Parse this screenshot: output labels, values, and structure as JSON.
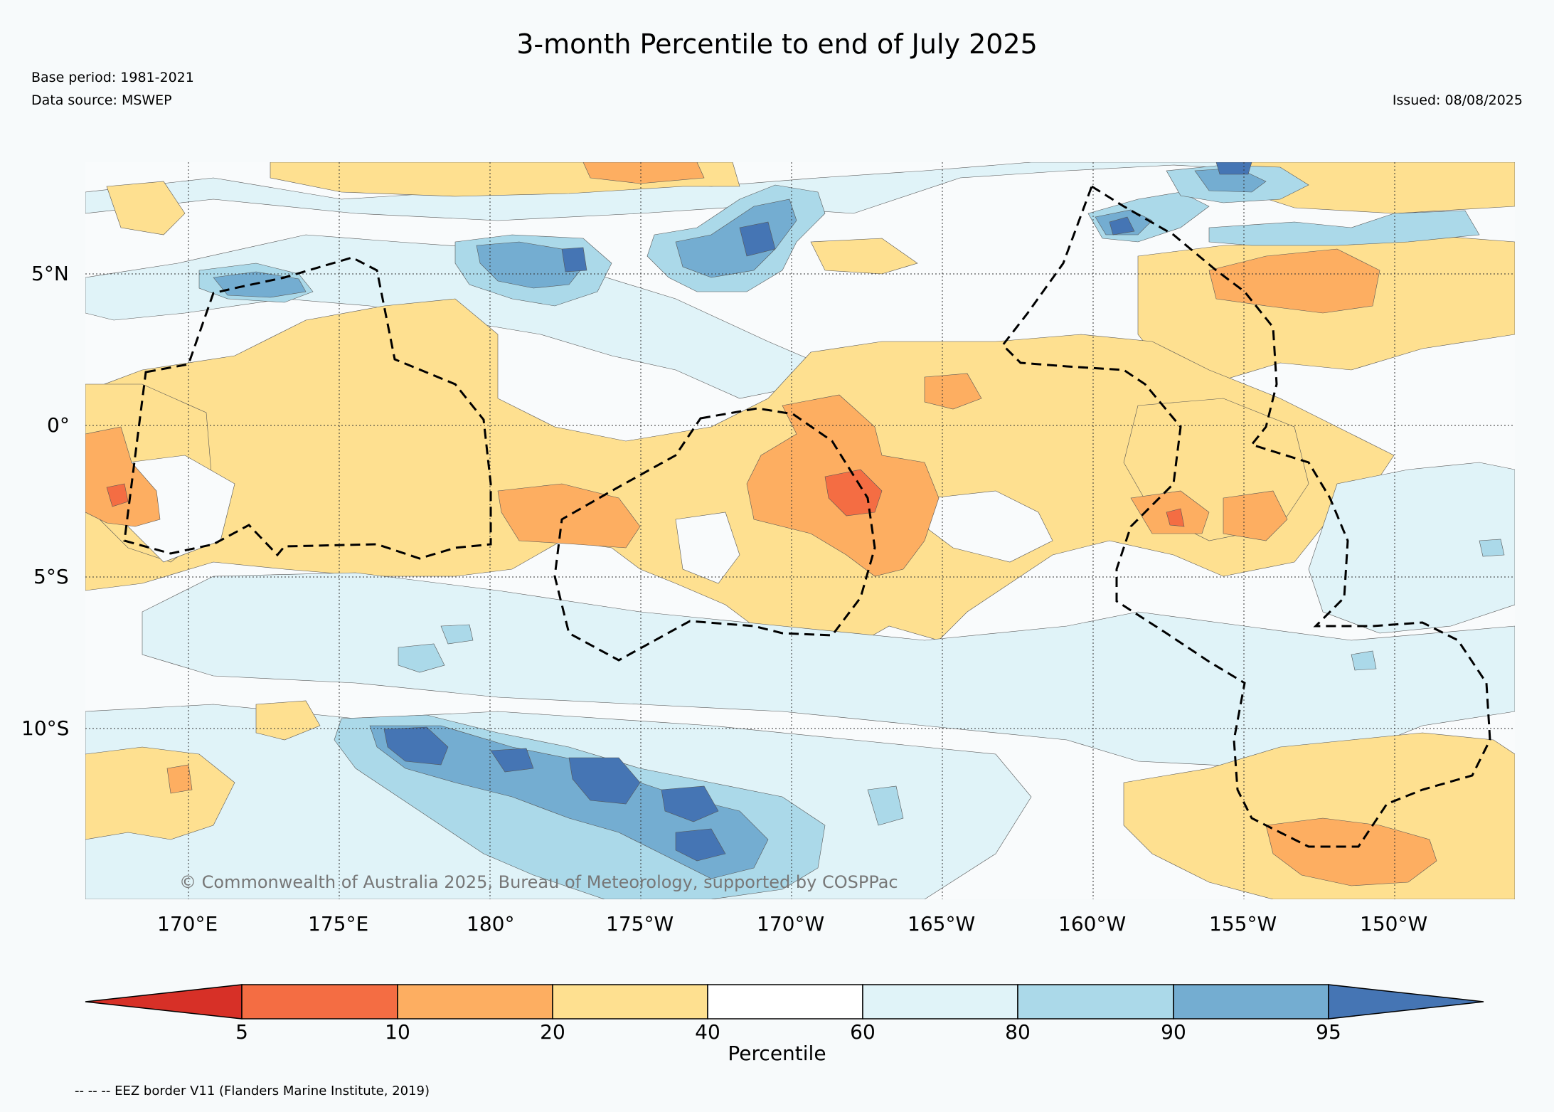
{
  "title": "3-month Percentile to end of July 2025",
  "base_period": "Base period: 1981-2021",
  "data_source": "Data source: MSWEP",
  "issued": "Issued: 08/08/2025",
  "credit": "© Commonwealth of Australia 2025, Bureau of Meteorology, supported by COSPPac",
  "lat_labels": [
    "5°N",
    "0°",
    "5°S",
    "10°S"
  ],
  "lon_labels": [
    "170°E",
    "175°E",
    "180°",
    "175°W",
    "170°W",
    "165°W",
    "160°W",
    "155°W",
    "150°W"
  ],
  "colorbar": {
    "title": "Percentile",
    "ticks": [
      "5",
      "10",
      "20",
      "40",
      "60",
      "80",
      "90",
      "95"
    ],
    "bin_colors": [
      "#d73027",
      "#f46d43",
      "#fdae61",
      "#fee090",
      "#ffffff",
      "#e0f3f8",
      "#abd9e9",
      "#74add1",
      "#4575b4"
    ]
  },
  "footnote": "-- -- -- EEZ border V11 (Flanders Marine Institute, 2019)"
}
